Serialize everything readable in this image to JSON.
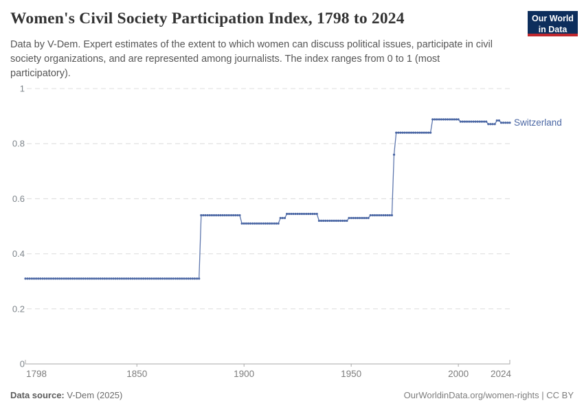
{
  "header": {
    "title": "Women's Civil Society Participation Index, 1798 to 2024",
    "subtitle_lines": [
      "Data by V-Dem. Expert estimates of the extent to which women can discuss political issues, participate in civil",
      "society organizations, and are represented among journalists. The index ranges from 0 to 1 (most",
      "participatory)."
    ],
    "logo": {
      "line1": "Our World",
      "line2": "in Data"
    }
  },
  "chart_data": {
    "type": "line",
    "title": "Women's Civil Society Participation Index, 1798 to 2024",
    "xlabel": "",
    "ylabel": "",
    "x_range": [
      1798,
      2024
    ],
    "y_range": [
      0,
      1
    ],
    "x_ticks": [
      1798,
      1850,
      1900,
      1950,
      2000,
      2024
    ],
    "y_ticks": [
      0,
      0.2,
      0.4,
      0.6,
      0.8,
      1
    ],
    "grid": "dashed horizontal",
    "legend_position": "end-of-line label",
    "markers": "annual dots",
    "series": [
      {
        "name": "Switzerland",
        "color": "#4b67a4",
        "points": [
          [
            1798,
            0.31
          ],
          [
            1879,
            0.31
          ],
          [
            1880,
            0.54
          ],
          [
            1898,
            0.54
          ],
          [
            1899,
            0.51
          ],
          [
            1916,
            0.51
          ],
          [
            1917,
            0.53
          ],
          [
            1919,
            0.53
          ],
          [
            1920,
            0.545
          ],
          [
            1934,
            0.545
          ],
          [
            1935,
            0.52
          ],
          [
            1948,
            0.52
          ],
          [
            1949,
            0.53
          ],
          [
            1958,
            0.53
          ],
          [
            1959,
            0.54
          ],
          [
            1969,
            0.54
          ],
          [
            1970,
            0.76
          ],
          [
            1971,
            0.84
          ],
          [
            1987,
            0.84
          ],
          [
            1988,
            0.888
          ],
          [
            2000,
            0.888
          ],
          [
            2001,
            0.88
          ],
          [
            2013,
            0.88
          ],
          [
            2014,
            0.871
          ],
          [
            2017,
            0.871
          ],
          [
            2018,
            0.884
          ],
          [
            2019,
            0.884
          ],
          [
            2020,
            0.876
          ],
          [
            2024,
            0.876
          ]
        ]
      }
    ]
  },
  "footer": {
    "source_label": "Data source:",
    "source_value": " V-Dem (2025)",
    "right_text": "OurWorldinData.org/women-rights | CC BY"
  },
  "colors": {
    "line": "#4b67a4",
    "grid": "#dcdcdc",
    "axis": "#a8a8a8",
    "tick_label": "#7d848a",
    "logo_navy": "#0d2e5c",
    "logo_red": "#c0272d"
  }
}
